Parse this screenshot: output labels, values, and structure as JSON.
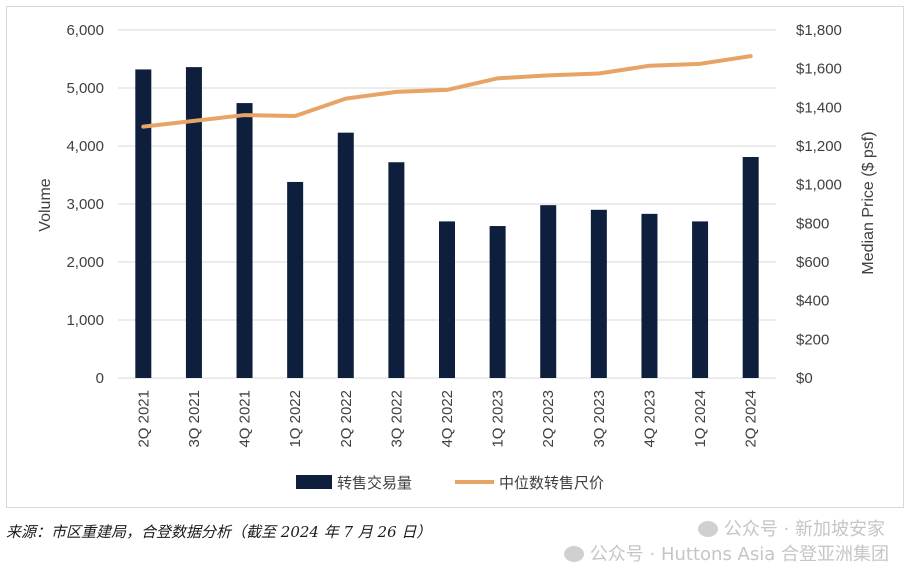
{
  "chart_data": {
    "type": "bar",
    "categories": [
      "2Q 2021",
      "3Q 2021",
      "4Q 2021",
      "1Q 2022",
      "2Q 2022",
      "3Q 2022",
      "4Q 2022",
      "1Q 2023",
      "2Q 2023",
      "3Q 2023",
      "4Q 2023",
      "1Q 2024",
      "2Q 2024"
    ],
    "series": [
      {
        "name": "转售交易量",
        "type": "bar",
        "axis": "left",
        "color": "#0d1f3c",
        "values": [
          5320,
          5360,
          4740,
          3380,
          4230,
          3720,
          2700,
          2620,
          2980,
          2900,
          2830,
          2700,
          3810
        ]
      },
      {
        "name": "中位数转售尺价",
        "type": "line",
        "axis": "right",
        "color": "#e8a366",
        "values": [
          1300,
          1330,
          1360,
          1355,
          1445,
          1480,
          1490,
          1550,
          1565,
          1575,
          1615,
          1625,
          1665
        ]
      }
    ],
    "ylabel": "Volume",
    "y2label": "Median Price ($ psf)",
    "ylim": [
      0,
      6000
    ],
    "y2lim": [
      0,
      1800
    ],
    "yticks": [
      "0",
      "1,000",
      "2,000",
      "3,000",
      "4,000",
      "5,000",
      "6,000"
    ],
    "y2ticks": [
      "$0",
      "$200",
      "$400",
      "$600",
      "$800",
      "$1,000",
      "$1,200",
      "$1,400",
      "$1,600",
      "$1,800"
    ],
    "grid": true,
    "legend": "bottom-center"
  },
  "source_note": "来源：市区重建局，合登数据分析（截至 2024 年 7 月 26 日）",
  "watermarks": [
    "公众号 · 新加坡安家",
    "公众号 · Huttons Asia 合登亚洲集团"
  ]
}
